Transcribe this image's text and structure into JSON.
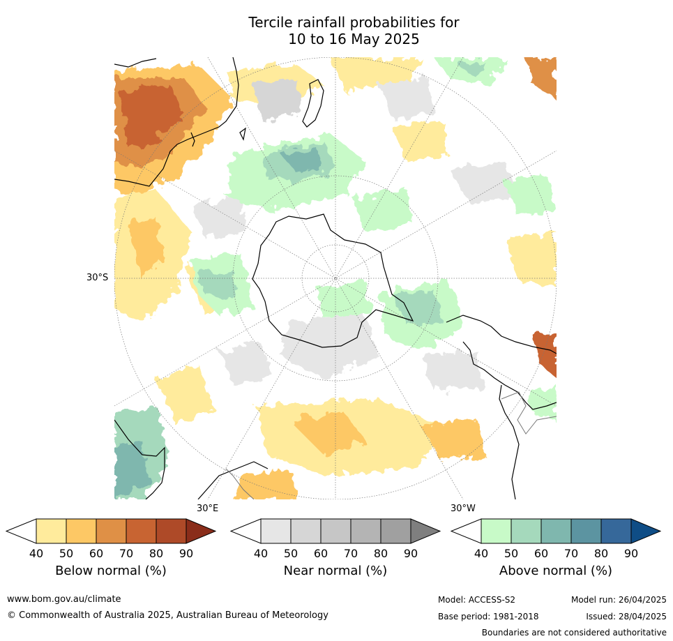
{
  "title": {
    "line1": "Tercile rainfall probabilities for",
    "line2": "10 to 16 May 2025"
  },
  "map": {
    "projection": "south-polar-stereographic",
    "lat_label": "30°S",
    "lon_labels": {
      "left": "30°E",
      "right": "30°W"
    },
    "colors": {
      "ocean": "#ffffff",
      "coast": "#000000",
      "graticule": "#777777"
    }
  },
  "colorbars": [
    {
      "name": "below",
      "label": "Below normal (%)",
      "ticks": [
        "40",
        "50",
        "60",
        "70",
        "80",
        "90"
      ],
      "colors": [
        "#ffffff",
        "#ffeb9c",
        "#fdc865",
        "#df9046",
        "#c86432",
        "#ae4a28",
        "#8a2d1a"
      ]
    },
    {
      "name": "near",
      "label": "Near normal (%)",
      "ticks": [
        "40",
        "50",
        "60",
        "70",
        "80",
        "90"
      ],
      "colors": [
        "#ffffff",
        "#e6e6e6",
        "#d6d6d6",
        "#c6c6c6",
        "#b4b4b4",
        "#a0a0a0",
        "#7f7f7f"
      ]
    },
    {
      "name": "above",
      "label": "Above normal (%)",
      "ticks": [
        "40",
        "50",
        "60",
        "70",
        "80",
        "90"
      ],
      "colors": [
        "#ffffff",
        "#c8fac8",
        "#a5d9bc",
        "#7fb7ae",
        "#5c94a1",
        "#36689a",
        "#0f4d86"
      ]
    }
  ],
  "footer": {
    "url": "www.bom.gov.au/climate",
    "copyright": "© Commonwealth of Australia 2025, Australian Bureau of Meteorology",
    "model": "Model: ACCESS-S2",
    "base_period": "Base period: 1981-2018",
    "model_run": "Model run: 26/04/2025",
    "issued": "Issued: 28/04/2025",
    "disclaimer": "Boundaries are not considered authoritative"
  }
}
